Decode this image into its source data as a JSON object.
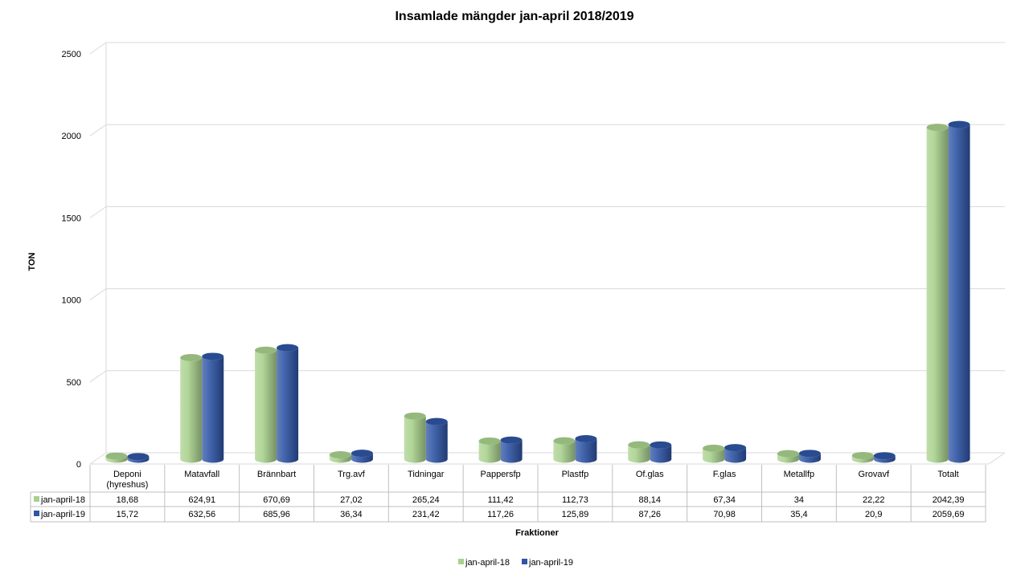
{
  "chart_data": {
    "type": "bar",
    "title": "Insamlade mängder jan-april 2018/2019",
    "xlabel": "Fraktioner",
    "ylabel": "TON",
    "ylim": [
      0,
      2500
    ],
    "yticks": [
      "0",
      "500",
      "1000",
      "1500",
      "2000",
      "2500"
    ],
    "grid": true,
    "legend_position": "bottom",
    "categories": [
      [
        "Deponi",
        "(hyreshus)"
      ],
      [
        "Matavfall"
      ],
      [
        "Brännbart"
      ],
      [
        "Trg.avf"
      ],
      [
        "Tidningar"
      ],
      [
        "Pappersfp"
      ],
      [
        "Plastfp"
      ],
      [
        "Of.glas"
      ],
      [
        "F.glas"
      ],
      [
        "Metallfp"
      ],
      [
        "Grovavf"
      ],
      [
        "Totalt"
      ]
    ],
    "series": [
      {
        "name": "jan-april-18",
        "color": "#a9d18e",
        "values": [
          18.68,
          624.91,
          670.69,
          27.02,
          265.24,
          111.42,
          112.73,
          88.14,
          67.34,
          34,
          22.22,
          2042.39
        ],
        "labels": [
          "18,68",
          "624,91",
          "670,69",
          "27,02",
          "265,24",
          "111,42",
          "112,73",
          "88,14",
          "67,34",
          "34",
          "22,22",
          "2042,39"
        ]
      },
      {
        "name": "jan-april-19",
        "color": "#2f55a4",
        "values": [
          15.72,
          632.56,
          685.96,
          36.34,
          231.42,
          117.26,
          125.89,
          87.26,
          70.98,
          35.4,
          20.9,
          2059.69
        ],
        "labels": [
          "15,72",
          "632,56",
          "685,96",
          "36,34",
          "231,42",
          "117,26",
          "125,89",
          "87,26",
          "70,98",
          "35,4",
          "20,9",
          "2059,69"
        ]
      }
    ]
  }
}
